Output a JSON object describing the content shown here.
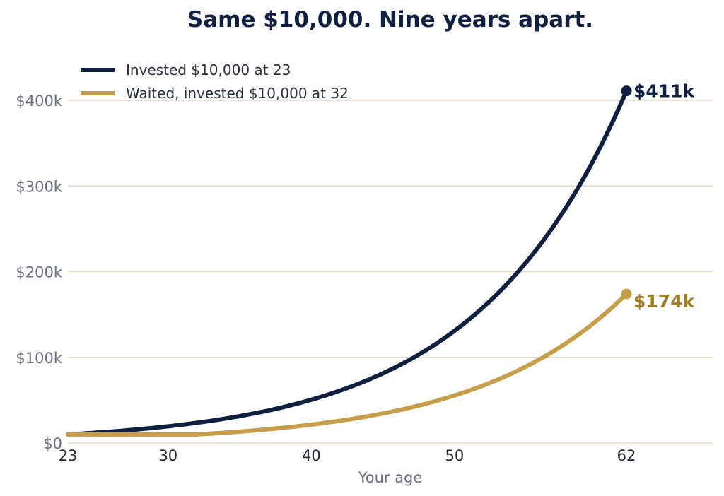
{
  "chart_data": {
    "type": "line",
    "title": "Same $10,000. Nine years apart.",
    "xlabel": "Your age",
    "ylabel": "",
    "xlim": [
      23,
      68
    ],
    "ylim": [
      0,
      400000
    ],
    "x_ticks": [
      23,
      30,
      40,
      50,
      62
    ],
    "x_tick_labels": [
      "23",
      "30",
      "40",
      "50",
      "62"
    ],
    "y_ticks": [
      0,
      100000,
      200000,
      300000,
      400000
    ],
    "y_tick_labels": [
      "$0",
      "$100k",
      "$200k",
      "$300k",
      "$400k"
    ],
    "grid": "horizontal",
    "legend_position": "top-left",
    "series": [
      {
        "name": "Invested $10,000 at 23",
        "color": "#0e1f3f",
        "start_age": 23,
        "end_age": 62,
        "start_value": 10000,
        "end_value": 411000,
        "end_label": "$411k",
        "x": [
          23,
          30,
          40,
          50,
          55,
          60,
          62
        ],
        "y": [
          10000,
          19000,
          50000,
          130000,
          210000,
          340000,
          411000
        ]
      },
      {
        "name": "Waited, invested $10,000 at 32",
        "color": "#c69e4b",
        "start_age": 23,
        "flat_until_age": 32,
        "end_age": 62,
        "start_value": 10000,
        "end_value": 174000,
        "end_label": "$174k",
        "x": [
          23,
          32,
          40,
          50,
          55,
          60,
          62
        ],
        "y": [
          10000,
          10000,
          22000,
          56000,
          90000,
          144000,
          174000
        ]
      }
    ],
    "colors": {
      "grid": "#e6dccb",
      "axis_text": "#6b7083",
      "x_tick_text": "#1f2533",
      "title": "#0e1f3f",
      "label_174k": "#a07e2a"
    }
  }
}
